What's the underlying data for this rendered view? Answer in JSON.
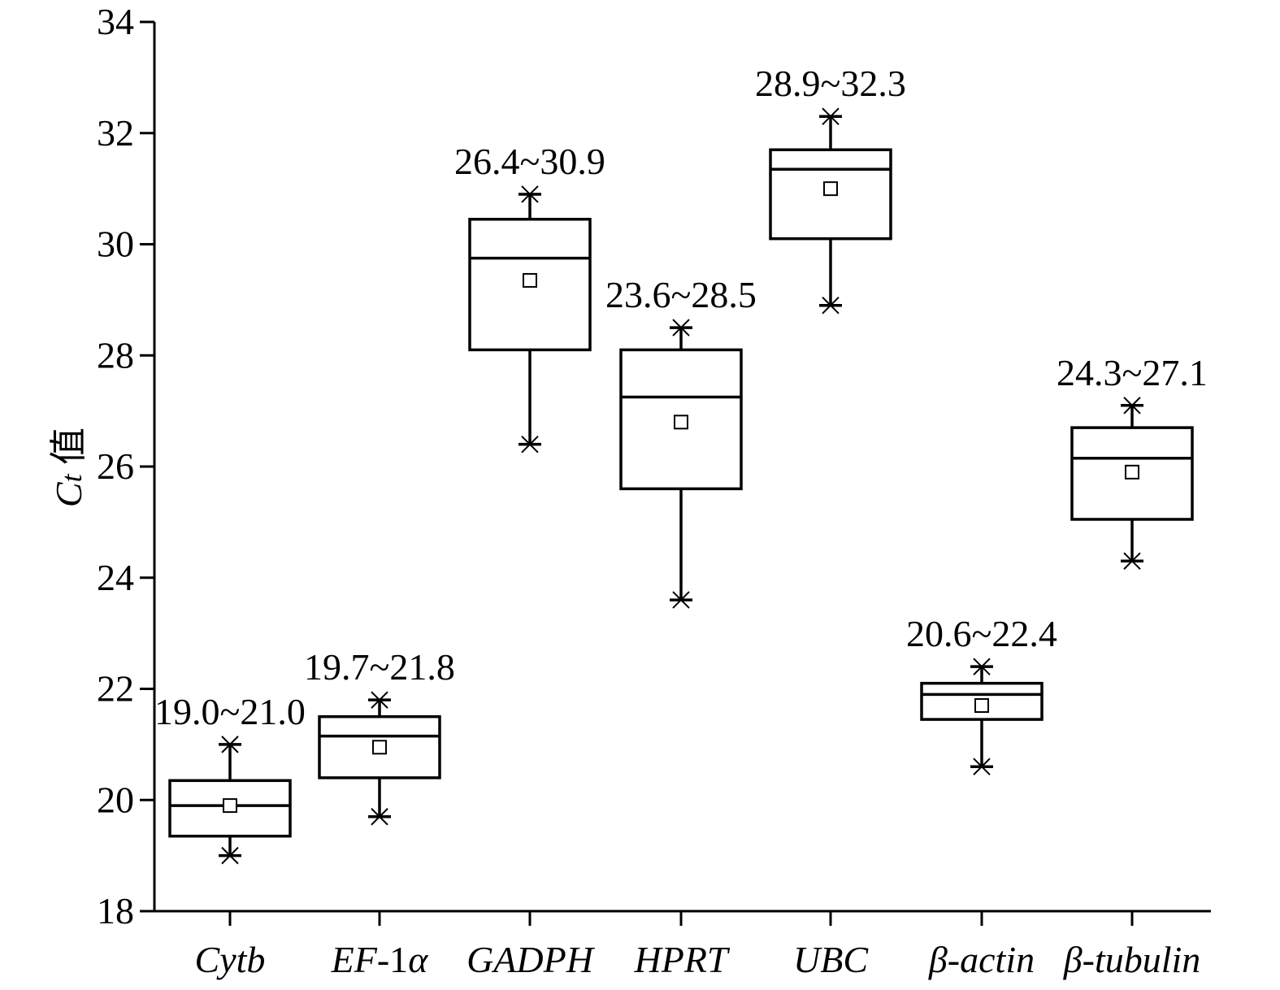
{
  "chart_data": {
    "type": "box",
    "ylabel": "Ct 值",
    "ylabel_main": "C",
    "ylabel_sub": "t",
    "ylabel_suffix": " 值",
    "ylim": [
      18,
      34
    ],
    "yticks": [
      18,
      20,
      22,
      24,
      26,
      28,
      30,
      32,
      34
    ],
    "grid": false,
    "categories": [
      "Cytb",
      "EF-1α",
      "GADPH",
      "HPRT",
      "UBC",
      "β-actin",
      "β-tubulin"
    ],
    "boxes": [
      {
        "label": "Cytb",
        "min": 19.0,
        "q1": 19.35,
        "median": 19.9,
        "q3": 20.35,
        "max": 21.0,
        "mean": 19.9,
        "range_label": "19.0~21.0"
      },
      {
        "label": "EF-1α",
        "min": 19.7,
        "q1": 20.4,
        "median": 21.15,
        "q3": 21.5,
        "max": 21.8,
        "mean": 20.95,
        "range_label": "19.7~21.8"
      },
      {
        "label": "GADPH",
        "min": 26.4,
        "q1": 28.1,
        "median": 29.75,
        "q3": 30.45,
        "max": 30.9,
        "mean": 29.35,
        "range_label": "26.4~30.9"
      },
      {
        "label": "HPRT",
        "min": 23.6,
        "q1": 25.6,
        "median": 27.25,
        "q3": 28.1,
        "max": 28.5,
        "mean": 26.8,
        "range_label": "23.6~28.5"
      },
      {
        "label": "UBC",
        "min": 28.9,
        "q1": 30.1,
        "median": 31.35,
        "q3": 31.7,
        "max": 32.3,
        "mean": 31.0,
        "range_label": "28.9~32.3"
      },
      {
        "label": "β-actin",
        "min": 20.6,
        "q1": 21.45,
        "median": 21.9,
        "q3": 22.1,
        "max": 22.4,
        "mean": 21.7,
        "range_label": "20.6~22.4"
      },
      {
        "label": "β-tubulin",
        "min": 24.3,
        "q1": 25.05,
        "median": 26.15,
        "q3": 26.7,
        "max": 27.1,
        "mean": 25.9,
        "range_label": "24.3~27.1"
      }
    ]
  }
}
